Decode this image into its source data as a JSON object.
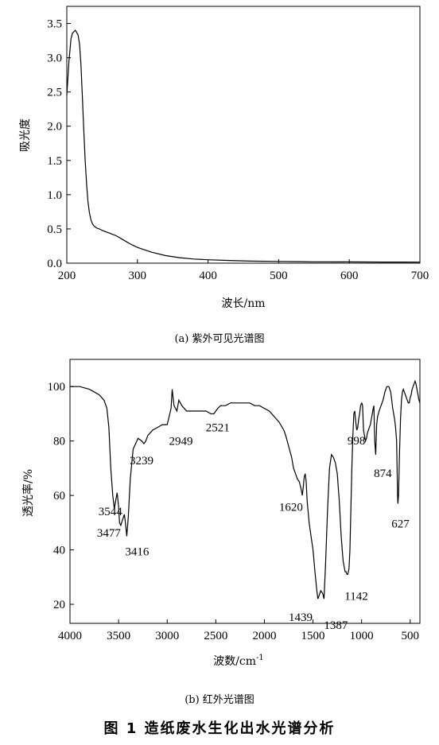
{
  "figure_title": "图 1   造纸废水生化出水光谱分析",
  "chart_data": [
    {
      "type": "line",
      "caption": "(a) 紫外可见光谱图",
      "xlabel": "波长/nm",
      "ylabel": "吸光度",
      "xlim": [
        200,
        700
      ],
      "ylim": [
        0,
        3.75
      ],
      "xticks": [
        "200",
        "300",
        "400",
        "500",
        "600",
        "700"
      ],
      "yticks": [
        "0.0",
        "0.5",
        "1.0",
        "1.5",
        "2.0",
        "2.5",
        "3.0",
        "3.5"
      ],
      "grid": false,
      "series": [
        {
          "x": [
            200,
            203,
            206,
            208,
            210,
            212,
            214,
            216,
            218,
            220,
            222,
            224,
            226,
            228,
            230,
            232,
            234,
            236,
            238,
            240,
            243,
            246,
            250,
            255,
            260,
            265,
            270,
            275,
            280,
            290,
            300,
            320,
            340,
            360,
            380,
            400,
            430,
            460,
            500,
            550,
            600,
            650,
            700
          ],
          "y": [
            2.45,
            2.95,
            3.28,
            3.36,
            3.38,
            3.4,
            3.37,
            3.33,
            3.2,
            2.9,
            2.45,
            1.95,
            1.5,
            1.15,
            0.9,
            0.74,
            0.64,
            0.58,
            0.55,
            0.53,
            0.51,
            0.5,
            0.48,
            0.46,
            0.44,
            0.42,
            0.4,
            0.37,
            0.34,
            0.28,
            0.23,
            0.16,
            0.11,
            0.08,
            0.06,
            0.05,
            0.04,
            0.03,
            0.025,
            0.02,
            0.018,
            0.016,
            0.015
          ]
        }
      ]
    },
    {
      "type": "line",
      "caption": "(b) 红外光谱图",
      "xlabel": "波数/cm",
      "xlabel_sup": "-1",
      "ylabel": "透光率/%",
      "xlim": [
        4000,
        400
      ],
      "ylim": [
        13,
        110
      ],
      "xticks": [
        "4000",
        "3500",
        "3000",
        "2500",
        "2000",
        "1500",
        "1000",
        "500"
      ],
      "yticks": [
        "20",
        "40",
        "60",
        "80",
        "100"
      ],
      "grid": false,
      "series": [
        {
          "x": [
            4000,
            3900,
            3800,
            3700,
            3650,
            3620,
            3600,
            3580,
            3560,
            3550,
            3544,
            3530,
            3515,
            3500,
            3490,
            3477,
            3460,
            3440,
            3430,
            3416,
            3400,
            3380,
            3350,
            3300,
            3260,
            3239,
            3220,
            3200,
            3150,
            3100,
            3050,
            3000,
            2980,
            2960,
            2949,
            2930,
            2900,
            2880,
            2850,
            2800,
            2750,
            2700,
            2650,
            2600,
            2550,
            2521,
            2480,
            2450,
            2400,
            2350,
            2300,
            2250,
            2200,
            2150,
            2100,
            2050,
            2000,
            1950,
            1900,
            1850,
            1800,
            1780,
            1750,
            1720,
            1700,
            1680,
            1660,
            1640,
            1620,
            1610,
            1600,
            1590,
            1580,
            1570,
            1560,
            1540,
            1520,
            1500,
            1480,
            1460,
            1450,
            1439,
            1420,
            1400,
            1387,
            1370,
            1350,
            1330,
            1310,
            1290,
            1270,
            1250,
            1230,
            1210,
            1190,
            1170,
            1160,
            1150,
            1142,
            1130,
            1120,
            1110,
            1100,
            1090,
            1080,
            1070,
            1060,
            1050,
            1040,
            1030,
            1020,
            1010,
            1000,
            998,
            990,
            980,
            970,
            960,
            950,
            940,
            930,
            920,
            910,
            900,
            890,
            880,
            874,
            865,
            855,
            845,
            835,
            820,
            800,
            780,
            760,
            740,
            720,
            700,
            690,
            680,
            670,
            660,
            650,
            640,
            635,
            630,
            627,
            620,
            610,
            600,
            590,
            580,
            570,
            560,
            550,
            540,
            530,
            520,
            510,
            500,
            490,
            480,
            470,
            460,
            450,
            440,
            430,
            420,
            410,
            400
          ],
          "y": [
            100,
            100,
            99,
            97,
            95,
            92,
            85,
            70,
            60,
            57,
            55,
            58,
            61,
            56,
            50,
            49,
            51,
            53,
            50,
            45,
            52,
            66,
            77,
            81,
            80,
            79,
            80,
            82,
            84,
            85,
            86,
            86,
            89,
            92,
            99,
            93,
            91,
            95,
            93,
            91,
            91,
            91,
            91,
            91,
            90,
            90,
            92,
            93,
            93,
            94,
            94,
            94,
            94,
            94,
            93,
            93,
            92,
            91,
            89,
            87,
            84,
            82,
            78,
            74,
            70,
            68,
            66,
            65,
            62,
            60,
            63,
            67,
            68,
            65,
            58,
            50,
            45,
            40,
            32,
            25,
            22,
            23,
            25,
            24,
            22,
            35,
            55,
            70,
            75,
            74,
            72,
            68,
            58,
            45,
            36,
            32,
            32,
            31,
            31,
            33,
            40,
            55,
            70,
            82,
            90,
            91,
            87,
            84,
            85,
            88,
            90,
            93,
            94,
            94,
            93,
            84,
            82,
            80,
            81,
            83,
            84,
            85,
            86,
            88,
            90,
            92,
            93,
            80,
            75,
            86,
            89,
            91,
            93,
            95,
            98,
            100,
            100,
            98,
            95,
            92,
            90,
            88,
            85,
            80,
            70,
            60,
            57,
            60,
            75,
            88,
            95,
            98,
            99,
            98,
            97,
            96,
            95,
            94,
            94,
            96,
            97,
            99,
            100,
            101,
            102,
            101,
            99,
            97,
            95,
            94
          ]
        }
      ],
      "annotations": [
        {
          "label": "3544",
          "x": 3544,
          "y": 55
        },
        {
          "label": "3477",
          "x": 3477,
          "y": 49
        },
        {
          "label": "3416",
          "x": 3416,
          "y": 45
        },
        {
          "label": "3239",
          "x": 3239,
          "y": 79
        },
        {
          "label": "2949",
          "x": 2949,
          "y": 85
        },
        {
          "label": "2521",
          "x": 2521,
          "y": 90
        },
        {
          "label": "1620",
          "x": 1620,
          "y": 62
        },
        {
          "label": "1439",
          "x": 1439,
          "y": 22
        },
        {
          "label": "1387",
          "x": 1387,
          "y": 22
        },
        {
          "label": "1142",
          "x": 1142,
          "y": 31
        },
        {
          "label": "998",
          "x": 998,
          "y": 84
        },
        {
          "label": "874",
          "x": 874,
          "y": 75
        },
        {
          "label": "627",
          "x": 627,
          "y": 57
        }
      ]
    }
  ]
}
